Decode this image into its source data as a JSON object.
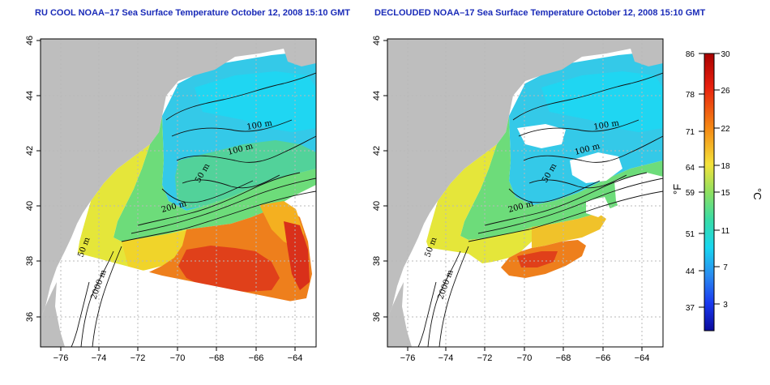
{
  "panels": [
    {
      "title": "RU COOL NOAA–17 Sea Surface Temperature October 12, 2008 15:10 GMT"
    },
    {
      "title": "DECLOUDED NOAA–17 Sea Surface Temperature October 12, 2008 15:10 GMT"
    }
  ],
  "axes": {
    "lon_ticks": [
      "−76",
      "−74",
      "−72",
      "−70",
      "−68",
      "−66",
      "−64"
    ],
    "lat_ticks": [
      "36",
      "38",
      "40",
      "42",
      "44",
      "46"
    ]
  },
  "contours": {
    "m100a": "100 m",
    "m100b": "100 m",
    "m50a": "50 m",
    "m200": "200 m",
    "m50b": "50 m",
    "m2000": "2000 m"
  },
  "colorbar": {
    "fahrenheit": [
      "86",
      "78",
      "71",
      "64",
      "59",
      "51",
      "44",
      "37"
    ],
    "celsius": [
      "30",
      "26",
      "22",
      "18",
      "15",
      "11",
      "7",
      "3"
    ],
    "unit_f": "°F",
    "unit_c": "°C"
  },
  "colors": {
    "land": "#bebebe",
    "cold": "#2cc6ee",
    "cool": "#5fe09a",
    "warm": "#e8e63a",
    "hot": "#f08a1e",
    "hottest": "#e23a14"
  }
}
